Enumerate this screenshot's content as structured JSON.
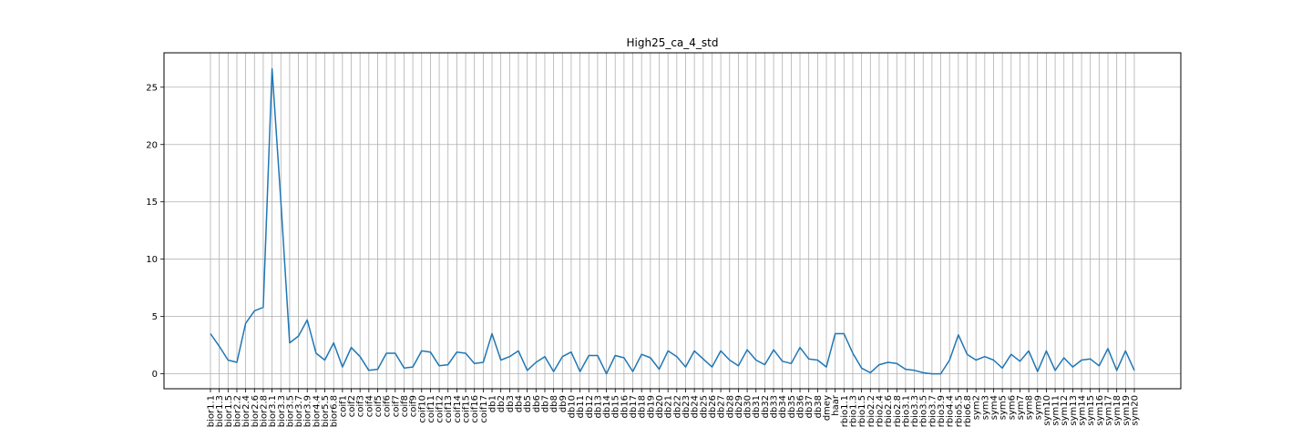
{
  "chart_data": {
    "type": "line",
    "title": "High25_ca_4_std",
    "xlabel": "",
    "ylabel": "",
    "ylim": [
      -1.3,
      28
    ],
    "yticks": [
      0,
      5,
      10,
      15,
      20,
      25
    ],
    "grid": true,
    "colors": {
      "line": "#1f77b4",
      "grid": "#b0b0b0",
      "axes": "#000000"
    },
    "x": [
      "bior1.1",
      "bior1.3",
      "bior1.5",
      "bior2.2",
      "bior2.4",
      "bior2.6",
      "bior2.8",
      "bior3.1",
      "bior3.3",
      "bior3.5",
      "bior3.7",
      "bior3.9",
      "bior4.4",
      "bior5.5",
      "bior6.8",
      "coif1",
      "coif2",
      "coif3",
      "coif4",
      "coif5",
      "coif6",
      "coif7",
      "coif8",
      "coif9",
      "coif10",
      "coif11",
      "coif12",
      "coif13",
      "coif14",
      "coif15",
      "coif16",
      "coif17",
      "db1",
      "db2",
      "db3",
      "db4",
      "db5",
      "db6",
      "db7",
      "db8",
      "db9",
      "db10",
      "db11",
      "db12",
      "db13",
      "db14",
      "db15",
      "db16",
      "db17",
      "db18",
      "db19",
      "db20",
      "db21",
      "db22",
      "db23",
      "db24",
      "db25",
      "db26",
      "db27",
      "db28",
      "db29",
      "db30",
      "db31",
      "db32",
      "db33",
      "db34",
      "db35",
      "db36",
      "db37",
      "db38",
      "dmey",
      "haar",
      "rbio1.1",
      "rbio1.3",
      "rbio1.5",
      "rbio2.2",
      "rbio2.4",
      "rbio2.6",
      "rbio2.8",
      "rbio3.1",
      "rbio3.3",
      "rbio3.5",
      "rbio3.7",
      "rbio3.9",
      "rbio4.4",
      "rbio5.5",
      "rbio6.8",
      "sym2",
      "sym3",
      "sym4",
      "sym5",
      "sym6",
      "sym7",
      "sym8",
      "sym9",
      "sym10",
      "sym11",
      "sym12",
      "sym13",
      "sym14",
      "sym15",
      "sym16",
      "sym17",
      "sym18",
      "sym19",
      "sym20"
    ],
    "series": [
      {
        "values": [
          3.5,
          2.4,
          1.2,
          1.0,
          4.4,
          5.5,
          5.8,
          26.6,
          15.0,
          2.7,
          3.3,
          4.7,
          1.8,
          1.2,
          2.7,
          0.6,
          2.3,
          1.5,
          0.3,
          0.4,
          1.8,
          1.8,
          0.5,
          0.6,
          2.0,
          1.9,
          0.7,
          0.8,
          1.9,
          1.8,
          0.9,
          1.0,
          3.5,
          1.2,
          1.5,
          2.0,
          0.3,
          1.0,
          1.5,
          0.2,
          1.5,
          1.9,
          0.2,
          1.6,
          1.6,
          0.0,
          1.6,
          1.4,
          0.2,
          1.7,
          1.4,
          0.4,
          2.0,
          1.5,
          0.6,
          2.0,
          1.3,
          0.6,
          2.0,
          1.2,
          0.7,
          2.1,
          1.2,
          0.8,
          2.1,
          1.1,
          0.9,
          2.3,
          1.3,
          1.2,
          0.6,
          3.5,
          3.5,
          1.8,
          0.5,
          0.1,
          0.8,
          1.0,
          0.9,
          0.4,
          0.3,
          0.1,
          0.0,
          0.0,
          1.2,
          3.4,
          1.7,
          1.2,
          1.5,
          1.2,
          0.5,
          1.7,
          1.1,
          2.0,
          0.2,
          2.0,
          0.3,
          1.4,
          0.6,
          1.2,
          1.3,
          0.7,
          2.2,
          0.3,
          2.0,
          0.3
        ]
      }
    ]
  }
}
